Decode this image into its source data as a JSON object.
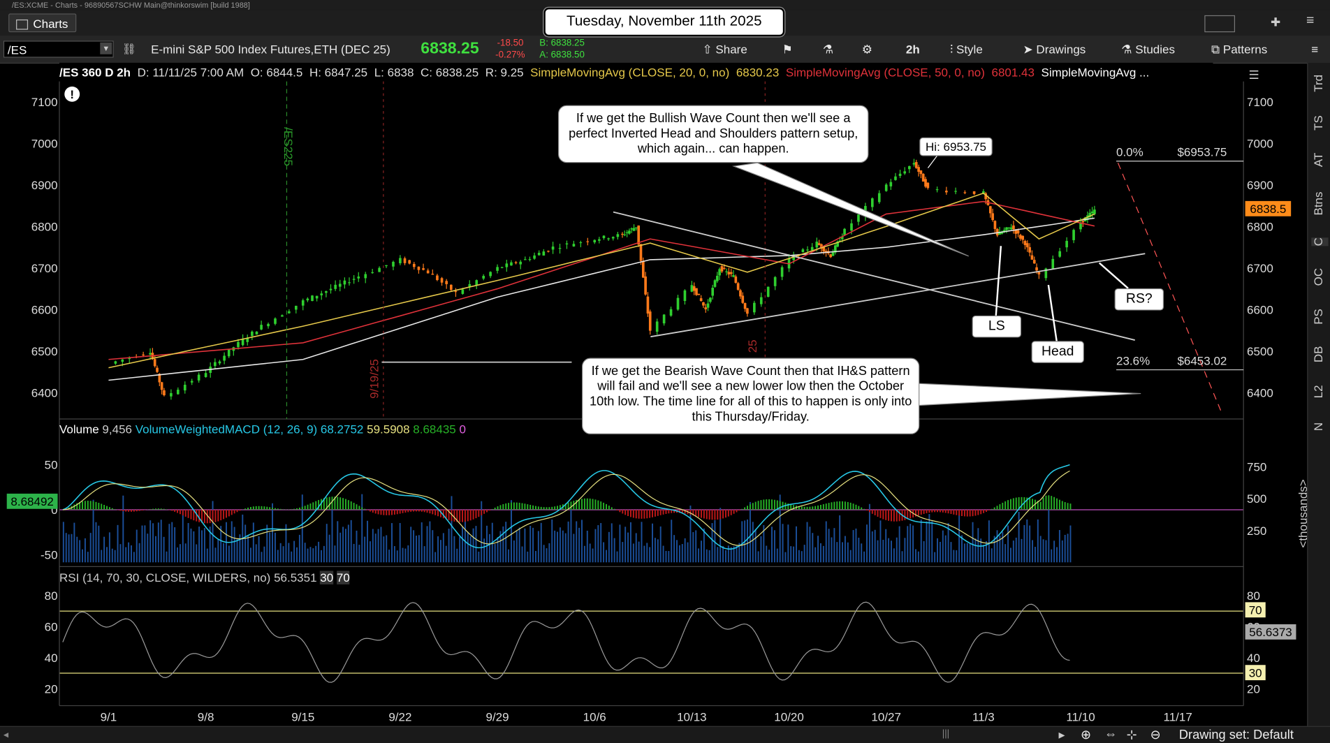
{
  "window_title": "/ES:XCME - Charts - 96890567SCHW Main@thinkorswim [build 1988]",
  "tab": {
    "label": "Charts"
  },
  "toolbar": {
    "symbol": "/ES",
    "description": "E-mini S&P 500 Index Futures,ETH (DEC 25)",
    "last": "6838.25",
    "change": "-18.50",
    "change_pct": "-0.27%",
    "bid": "B: 6838.25",
    "ask": "A: 6838.50",
    "share": "Share",
    "timeframe": "2h",
    "style": "Style",
    "drawings": "Drawings",
    "studies": "Studies",
    "patterns": "Patterns"
  },
  "date_banner": "Tuesday, November 11th 2025",
  "studybar": {
    "symbol": "/ES 360 D 2h",
    "ohlc": "D: 11/11/25 7:00 AM",
    "open": "O: 6844.5",
    "high": "H: 6847.25",
    "low": "L: 6838",
    "close": "C: 6838.25",
    "range": "R: 9.25",
    "sma20": "SimpleMovingAvg (CLOSE, 20, 0, no)",
    "sma20_val": "6830.23",
    "sma50": "SimpleMovingAvg (CLOSE, 50, 0, no)",
    "sma50_val": "6801.43",
    "sma200": "SimpleMovingAvg ..."
  },
  "annotations": {
    "bullish": "If we get the Bullish Wave Count then we'll see a perfect Inverted Head and Shoulders pattern setup, which again... can happen.",
    "bearish": "If we get the Bearish Wave Count then that IH&S pattern will fail and we'll see a new lower low then the October 10th low.  The time line for all of this to happen is only into this Thursday/Friday.",
    "hi": "Hi: 6953.75",
    "ls": "LS",
    "head": "Head",
    "rs": "RS?",
    "fib0": "0.0%",
    "fib0_val": "$6953.75",
    "fib236": "23.6%",
    "fib236_val": "$6453.02",
    "es225": "/ES225",
    "date_919": "9/19/25",
    "date_1017": "25"
  },
  "price_label": "6838.5",
  "volume_bar": {
    "label": "Volume",
    "vol": "9,456",
    "macd": "VolumeWeightedMACD (12, 26, 9)",
    "v1": "68.2752",
    "v2": "59.5908",
    "v3": "8.68435",
    "v4": "0"
  },
  "macd_left_label": "8.68492",
  "rsi_bar": {
    "label": "RSI (14, 70, 30, CLOSE, WILDERS, no)",
    "val": "56.5351",
    "lo": "30",
    "hi": "70",
    "last": "56.6373",
    "tag70": "70",
    "tag30": "30"
  },
  "thousands_label": "<thousands>",
  "sidebar": [
    "Trd",
    "TS",
    "AT",
    "Btns",
    "C",
    "OC",
    "PS",
    "DB",
    "L2",
    "N"
  ],
  "bottom": {
    "drawing_set": "Drawing set: Default"
  },
  "chart_data": {
    "type": "candlestick",
    "x_ticks": [
      "9/1",
      "9/8",
      "9/15",
      "9/22",
      "9/29",
      "10/6",
      "10/13",
      "10/20",
      "10/27",
      "11/3",
      "11/10",
      "11/17"
    ],
    "price_ticks": [
      7100,
      7000,
      6900,
      6800,
      6700,
      6600,
      6500,
      6400
    ],
    "price_range": [
      6350,
      7140
    ],
    "macd_ticks": [
      50,
      0,
      -50
    ],
    "volume_ticks": [
      750,
      500,
      250
    ],
    "rsi_ticks": [
      80,
      60,
      40,
      20
    ],
    "price_path_points": [
      [
        "9/1",
        6470
      ],
      [
        "9/4",
        6500
      ],
      [
        "9/5",
        6390
      ],
      [
        "9/8",
        6450
      ],
      [
        "9/10",
        6510
      ],
      [
        "9/12",
        6560
      ],
      [
        "9/15",
        6620
      ],
      [
        "9/17",
        6650
      ],
      [
        "9/19",
        6680
      ],
      [
        "9/22",
        6720
      ],
      [
        "9/24",
        6690
      ],
      [
        "9/26",
        6640
      ],
      [
        "9/29",
        6700
      ],
      [
        "10/1",
        6720
      ],
      [
        "10/3",
        6750
      ],
      [
        "10/6",
        6770
      ],
      [
        "10/8",
        6780
      ],
      [
        "10/9",
        6800
      ],
      [
        "10/10",
        6550
      ],
      [
        "10/13",
        6660
      ],
      [
        "10/14",
        6600
      ],
      [
        "10/15",
        6700
      ],
      [
        "10/16",
        6680
      ],
      [
        "10/17",
        6590
      ],
      [
        "10/20",
        6720
      ],
      [
        "10/22",
        6760
      ],
      [
        "10/23",
        6730
      ],
      [
        "10/24",
        6790
      ],
      [
        "10/27",
        6900
      ],
      [
        "10/29",
        6953.75
      ],
      [
        "10/30",
        6890
      ],
      [
        "11/3",
        6880
      ],
      [
        "11/4",
        6780
      ],
      [
        "11/5",
        6800
      ],
      [
        "11/6",
        6760
      ],
      [
        "11/7",
        6680
      ],
      [
        "11/10",
        6810
      ],
      [
        "11/11",
        6838.25
      ]
    ],
    "sma20_points": [
      [
        "9/1",
        6460
      ],
      [
        "9/15",
        6560
      ],
      [
        "9/29",
        6670
      ],
      [
        "10/10",
        6760
      ],
      [
        "10/17",
        6690
      ],
      [
        "10/27",
        6800
      ],
      [
        "11/3",
        6880
      ],
      [
        "11/7",
        6770
      ],
      [
        "11/11",
        6830
      ]
    ],
    "sma50_points": [
      [
        "9/1",
        6480
      ],
      [
        "9/15",
        6520
      ],
      [
        "9/29",
        6650
      ],
      [
        "10/10",
        6770
      ],
      [
        "10/20",
        6710
      ],
      [
        "10/27",
        6830
      ],
      [
        "11/3",
        6860
      ],
      [
        "11/11",
        6801
      ]
    ],
    "sma200_points": [
      [
        "9/1",
        6430
      ],
      [
        "9/15",
        6480
      ],
      [
        "9/29",
        6630
      ],
      [
        "10/10",
        6720
      ],
      [
        "10/20",
        6730
      ],
      [
        "10/27",
        6750
      ],
      [
        "11/3",
        6780
      ],
      [
        "11/11",
        6820
      ]
    ],
    "fib_levels": [
      {
        "pct": "0.0%",
        "price": 6953.75
      },
      {
        "pct": "23.6%",
        "price": 6453.02
      }
    ]
  }
}
